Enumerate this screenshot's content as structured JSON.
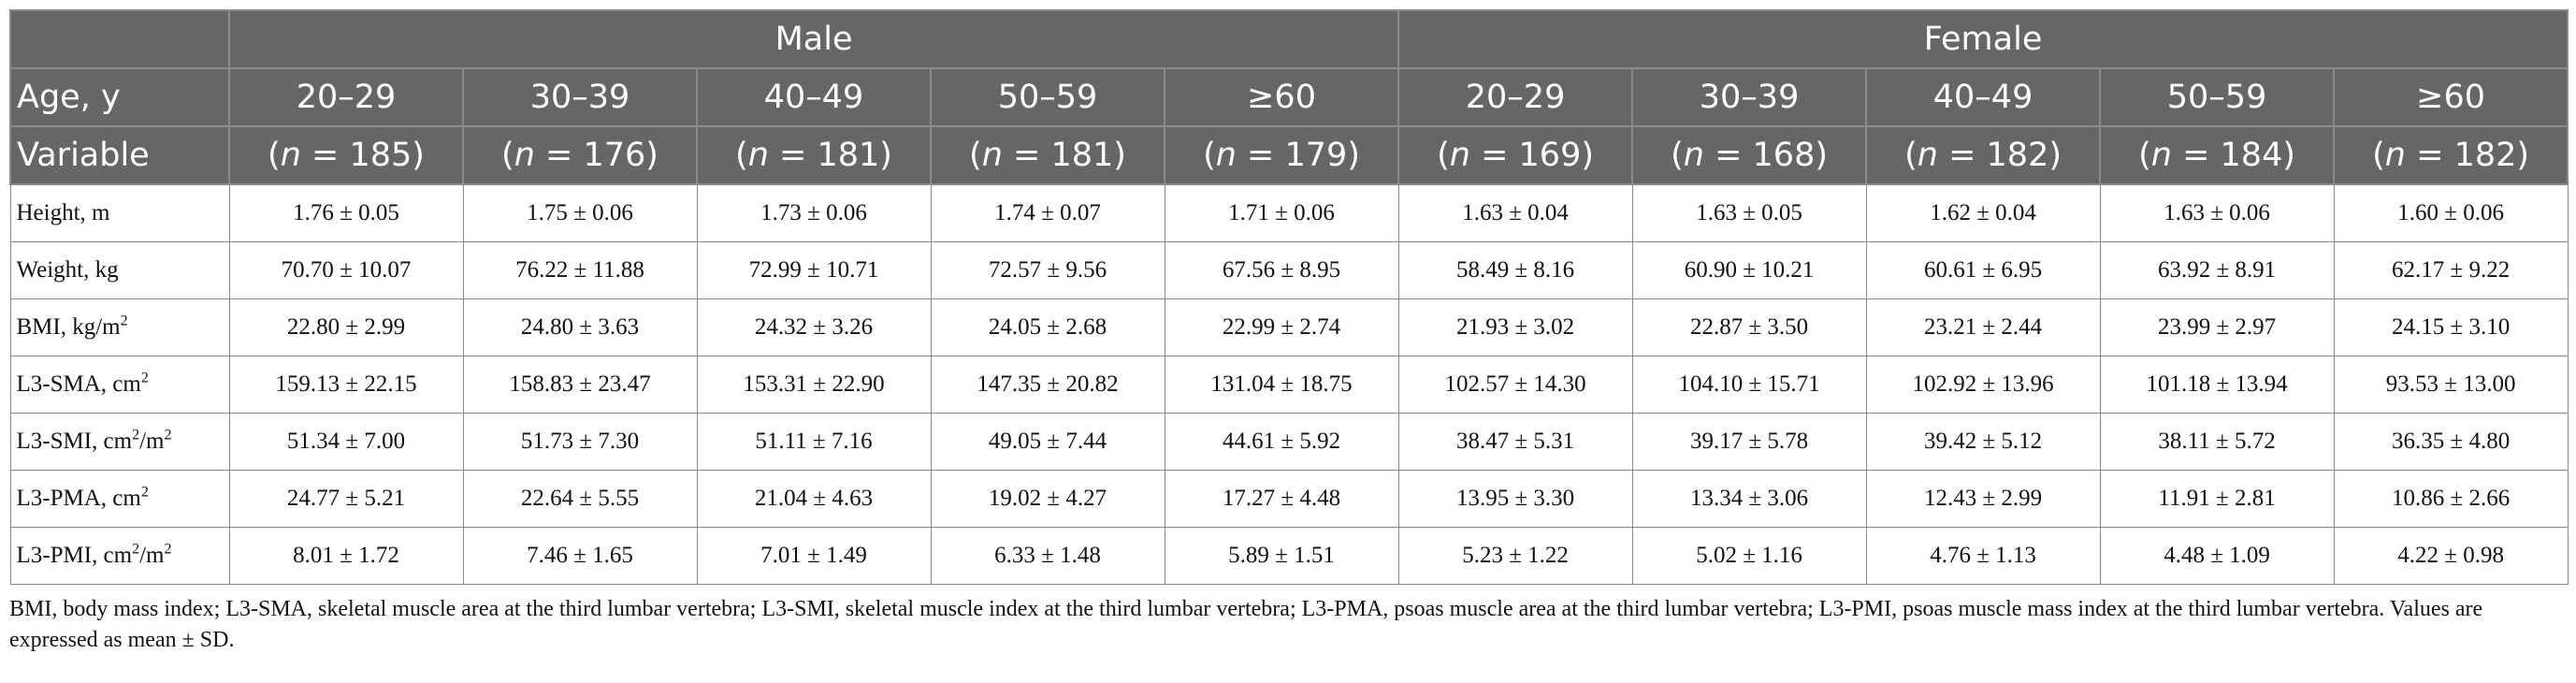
{
  "header": {
    "group_male": "Male",
    "group_female": "Female",
    "row2_label": "Age, y",
    "row3_label": "Variable",
    "age_groups": [
      "20–29",
      "30–39",
      "40–49",
      "50–59",
      "≥60",
      "20–29",
      "30–39",
      "40–49",
      "50–59",
      "≥60"
    ],
    "n_italic": "n",
    "n_values": [
      "185",
      "176",
      "181",
      "181",
      "179",
      "169",
      "168",
      "182",
      "184",
      "182"
    ]
  },
  "rows": [
    {
      "label": "Height, m",
      "unit_sup": "",
      "unit_suffix": "",
      "values": [
        "1.76 ± 0.05",
        "1.75 ± 0.06",
        "1.73 ± 0.06",
        "1.74 ± 0.07",
        "1.71 ± 0.06",
        "1.63 ± 0.04",
        "1.63 ± 0.05",
        "1.62 ± 0.04",
        "1.63 ± 0.06",
        "1.60 ± 0.06"
      ]
    },
    {
      "label": "Weight, kg",
      "unit_sup": "",
      "unit_suffix": "",
      "values": [
        "70.70 ± 10.07",
        "76.22 ± 11.88",
        "72.99 ± 10.71",
        "72.57 ± 9.56",
        "67.56 ± 8.95",
        "58.49 ± 8.16",
        "60.90 ± 10.21",
        "60.61 ± 6.95",
        "63.92 ± 8.91",
        "62.17 ± 9.22"
      ]
    },
    {
      "label": "BMI, kg/m",
      "unit_sup": "2",
      "unit_suffix": "",
      "values": [
        "22.80 ± 2.99",
        "24.80 ± 3.63",
        "24.32 ± 3.26",
        "24.05 ± 2.68",
        "22.99 ± 2.74",
        "21.93 ± 3.02",
        "22.87 ± 3.50",
        "23.21 ± 2.44",
        "23.99 ± 2.97",
        "24.15 ± 3.10"
      ]
    },
    {
      "label": "L3-SMA, cm",
      "unit_sup": "2",
      "unit_suffix": "",
      "values": [
        "159.13 ± 22.15",
        "158.83 ± 23.47",
        "153.31 ± 22.90",
        "147.35 ± 20.82",
        "131.04 ± 18.75",
        "102.57 ± 14.30",
        "104.10 ± 15.71",
        "102.92 ± 13.96",
        "101.18 ± 13.94",
        "93.53 ± 13.00"
      ]
    },
    {
      "label": "L3-SMI, cm",
      "unit_sup": "2",
      "unit_suffix": "/m²",
      "values": [
        "51.34 ± 7.00",
        "51.73 ± 7.30",
        "51.11 ± 7.16",
        "49.05 ± 7.44",
        "44.61 ± 5.92",
        "38.47 ± 5.31",
        "39.17 ± 5.78",
        "39.42 ± 5.12",
        "38.11 ± 5.72",
        "36.35 ± 4.80"
      ]
    },
    {
      "label": "L3-PMA, cm",
      "unit_sup": "2",
      "unit_suffix": "",
      "values": [
        "24.77 ± 5.21",
        "22.64 ± 5.55",
        "21.04 ± 4.63",
        "19.02 ± 4.27",
        "17.27 ± 4.48",
        "13.95 ± 3.30",
        "13.34 ± 3.06",
        "12.43 ± 2.99",
        "11.91 ± 2.81",
        "10.86 ± 2.66"
      ]
    },
    {
      "label": "L3-PMI, cm",
      "unit_sup": "2",
      "unit_suffix": "/m²",
      "values": [
        "8.01 ± 1.72",
        "7.46 ± 1.65",
        "7.01 ± 1.49",
        "6.33 ± 1.48",
        "5.89 ± 1.51",
        "5.23 ± 1.22",
        "5.02 ± 1.16",
        "4.76 ± 1.13",
        "4.48 ± 1.09",
        "4.22 ± 0.98"
      ]
    }
  ],
  "footnote": "BMI, body mass index; L3-SMA, skeletal muscle area at the third lumbar vertebra; L3-SMI, skeletal muscle index at the third lumbar vertebra; L3-PMA, psoas muscle area at the third lumbar vertebra; L3-PMI, psoas muscle mass index at the third lumbar vertebra. Values are expressed as mean ± SD."
}
